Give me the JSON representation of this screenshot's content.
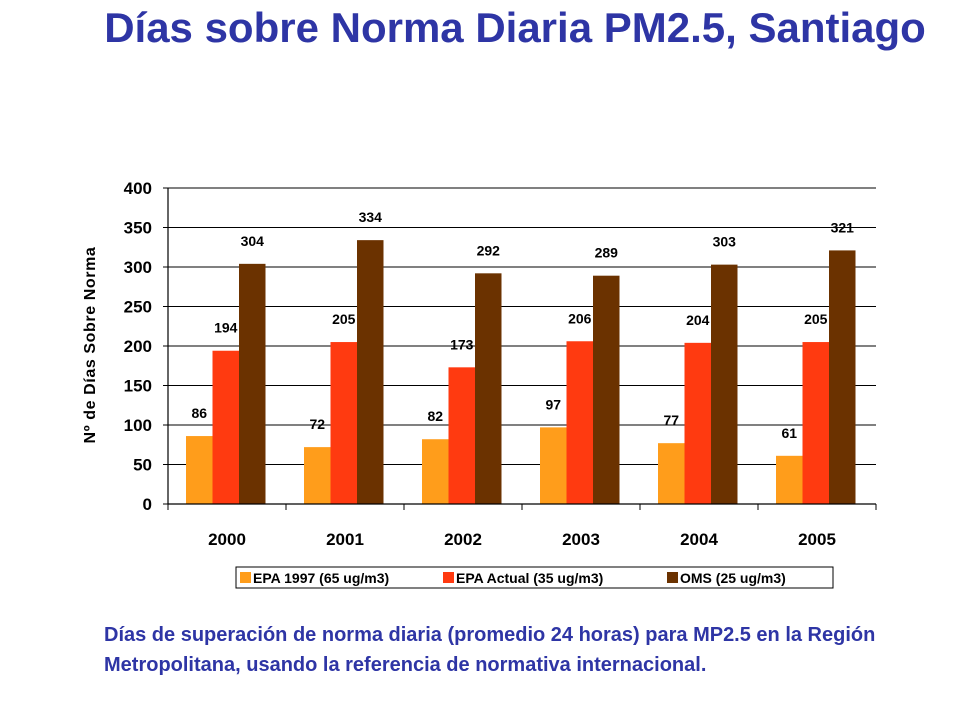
{
  "title": "Días sobre Norma Diaria PM2.5, Santiago",
  "caption": "Días de superación de norma diaria (promedio 24 horas) para MP2.5 en la Región Metropolitana, usando la referencia de normativa internacional.",
  "chart_data": {
    "type": "bar",
    "categories": [
      "2000",
      "2001",
      "2002",
      "2003",
      "2004",
      "2005"
    ],
    "ylabel": "Nº de Días Sobre Norma",
    "ylim": [
      0,
      400
    ],
    "yticks": [
      0,
      50,
      100,
      150,
      200,
      250,
      300,
      350,
      400
    ],
    "grid": true,
    "legend_position": "bottom",
    "series": [
      {
        "name": "EPA 1997 (65 ug/m3)",
        "color": "#ff9d1b",
        "values": [
          86,
          72,
          82,
          97,
          77,
          61
        ]
      },
      {
        "name": "EPA Actual (35 ug/m3)",
        "color": "#ff3a10",
        "values": [
          194,
          205,
          173,
          206,
          204,
          205
        ]
      },
      {
        "name": "OMS (25 ug/m3)",
        "color": "#6b3200",
        "values": [
          304,
          334,
          292,
          289,
          303,
          321
        ]
      }
    ]
  }
}
